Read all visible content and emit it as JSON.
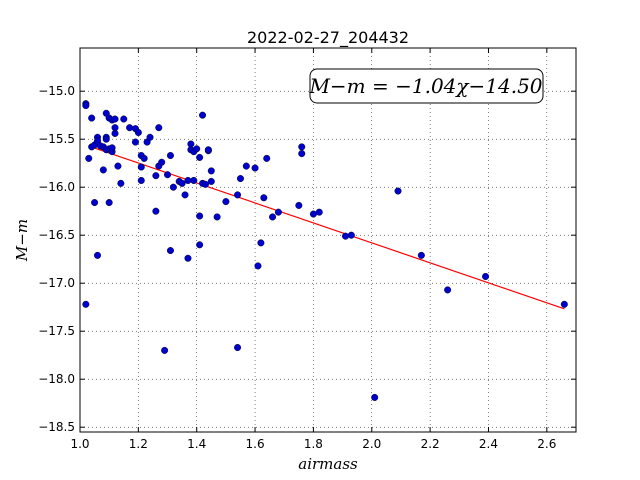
{
  "chart_data": {
    "type": "scatter",
    "title": "2022-02-27_204432",
    "xlabel": "airmass",
    "ylabel": "M−m",
    "xlim": [
      1.0,
      2.7
    ],
    "ylim": [
      -18.55,
      -14.55
    ],
    "x_ticks": [
      1.0,
      1.2,
      1.4,
      1.6,
      1.8,
      2.0,
      2.2,
      2.4,
      2.6
    ],
    "x_tick_labels": [
      "1.0",
      "1.2",
      "1.4",
      "1.6",
      "1.8",
      "2.0",
      "2.2",
      "2.4",
      "2.6"
    ],
    "y_ticks": [
      -15.0,
      -15.5,
      -16.0,
      -16.5,
      -17.0,
      -17.5,
      -18.0,
      -18.5
    ],
    "y_tick_labels": [
      "−15.0",
      "−15.5",
      "−16.0",
      "−16.5",
      "−17.0",
      "−17.5",
      "−18.0",
      "−18.5"
    ],
    "grid": true,
    "annotation": "M−m = −1.04χ−14.50",
    "fit": {
      "slope": -1.04,
      "intercept": -14.5,
      "x_range": [
        1.03,
        2.66
      ],
      "color": "#ff0000"
    },
    "marker_color": "#0000cc",
    "points": [
      [
        1.02,
        -15.13
      ],
      [
        1.02,
        -15.15
      ],
      [
        1.03,
        -15.7
      ],
      [
        1.02,
        -17.22
      ],
      [
        1.04,
        -15.28
      ],
      [
        1.04,
        -15.58
      ],
      [
        1.05,
        -15.56
      ],
      [
        1.05,
        -16.16
      ],
      [
        1.06,
        -15.48
      ],
      [
        1.06,
        -15.52
      ],
      [
        1.06,
        -16.71
      ],
      [
        1.07,
        -15.57
      ],
      [
        1.08,
        -15.82
      ],
      [
        1.08,
        -15.58
      ],
      [
        1.09,
        -15.23
      ],
      [
        1.09,
        -15.48
      ],
      [
        1.09,
        -15.5
      ],
      [
        1.09,
        -15.61
      ],
      [
        1.1,
        -15.28
      ],
      [
        1.1,
        -16.16
      ],
      [
        1.1,
        -15.6
      ],
      [
        1.11,
        -15.63
      ],
      [
        1.11,
        -15.59
      ],
      [
        1.11,
        -15.3
      ],
      [
        1.12,
        -15.38
      ],
      [
        1.12,
        -15.44
      ],
      [
        1.12,
        -15.29
      ],
      [
        1.13,
        -15.78
      ],
      [
        1.14,
        -15.96
      ],
      [
        1.15,
        -15.29
      ],
      [
        1.17,
        -15.38
      ],
      [
        1.19,
        -15.53
      ],
      [
        1.19,
        -15.39
      ],
      [
        1.2,
        -15.43
      ],
      [
        1.21,
        -15.79
      ],
      [
        1.21,
        -15.93
      ],
      [
        1.21,
        -15.67
      ],
      [
        1.22,
        -15.7
      ],
      [
        1.23,
        -15.53
      ],
      [
        1.24,
        -15.48
      ],
      [
        1.26,
        -16.25
      ],
      [
        1.26,
        -15.88
      ],
      [
        1.27,
        -15.38
      ],
      [
        1.27,
        -15.78
      ],
      [
        1.28,
        -15.74
      ],
      [
        1.29,
        -17.7
      ],
      [
        1.3,
        -15.87
      ],
      [
        1.31,
        -15.67
      ],
      [
        1.31,
        -16.66
      ],
      [
        1.32,
        -16.0
      ],
      [
        1.34,
        -15.94
      ],
      [
        1.35,
        -15.96
      ],
      [
        1.36,
        -16.08
      ],
      [
        1.37,
        -15.93
      ],
      [
        1.37,
        -16.74
      ],
      [
        1.38,
        -15.55
      ],
      [
        1.38,
        -15.61
      ],
      [
        1.39,
        -15.93
      ],
      [
        1.39,
        -15.63
      ],
      [
        1.4,
        -15.6
      ],
      [
        1.41,
        -15.69
      ],
      [
        1.41,
        -16.3
      ],
      [
        1.41,
        -16.6
      ],
      [
        1.42,
        -15.96
      ],
      [
        1.42,
        -15.25
      ],
      [
        1.43,
        -15.97
      ],
      [
        1.44,
        -15.62
      ],
      [
        1.44,
        -15.61
      ],
      [
        1.45,
        -15.83
      ],
      [
        1.45,
        -15.94
      ],
      [
        1.47,
        -16.31
      ],
      [
        1.5,
        -16.15
      ],
      [
        1.54,
        -16.08
      ],
      [
        1.54,
        -17.67
      ],
      [
        1.55,
        -15.91
      ],
      [
        1.57,
        -15.78
      ],
      [
        1.6,
        -15.8
      ],
      [
        1.61,
        -16.82
      ],
      [
        1.62,
        -16.58
      ],
      [
        1.63,
        -16.11
      ],
      [
        1.64,
        -15.7
      ],
      [
        1.66,
        -16.31
      ],
      [
        1.68,
        -16.26
      ],
      [
        1.75,
        -16.19
      ],
      [
        1.76,
        -15.58
      ],
      [
        1.76,
        -15.65
      ],
      [
        1.8,
        -16.28
      ],
      [
        1.82,
        -16.26
      ],
      [
        1.91,
        -16.51
      ],
      [
        1.93,
        -16.5
      ],
      [
        2.01,
        -18.19
      ],
      [
        2.09,
        -16.04
      ],
      [
        2.17,
        -16.71
      ],
      [
        2.26,
        -17.07
      ],
      [
        2.39,
        -16.93
      ],
      [
        2.66,
        -17.22
      ]
    ]
  }
}
